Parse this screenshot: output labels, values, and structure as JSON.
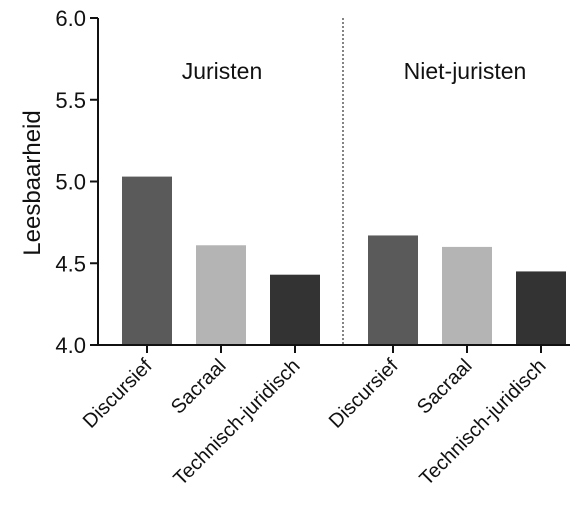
{
  "chart_data": {
    "type": "bar",
    "title": "",
    "xlabel": "",
    "ylabel": "Leesbaarheid",
    "ylim": [
      4.0,
      6.0
    ],
    "yticks": [
      "4.0",
      "4.5",
      "5.0",
      "5.5",
      "6.0"
    ],
    "grid": false,
    "groups": [
      {
        "label": "Juristen",
        "categories": [
          "Discursief",
          "Sacraal",
          "Technisch-juridisch"
        ],
        "values": [
          5.03,
          4.61,
          4.43
        ]
      },
      {
        "label": "Niet-juristen",
        "categories": [
          "Discursief",
          "Sacraal",
          "Technisch-juridisch"
        ],
        "values": [
          4.67,
          4.6,
          4.45
        ]
      }
    ],
    "colors": [
      "#5a5a5a",
      "#b4b4b4",
      "#333333"
    ]
  }
}
